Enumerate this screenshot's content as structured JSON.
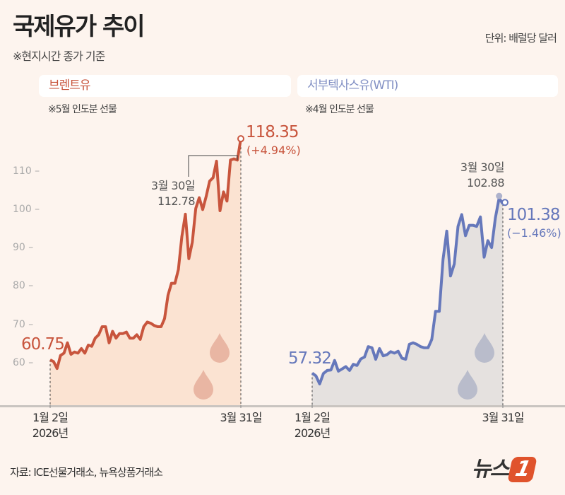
{
  "header": {
    "title": "국제유가 추이",
    "basis_note": "※현지시간 종가 기준",
    "unit": "단위: 배럴당 달러"
  },
  "source": "자료: ICE선물거래소, 뉴욕상품거래소",
  "logo_text": "뉴스1",
  "colors": {
    "background": "#fdf4ee",
    "brent": "#c8553d",
    "brent_fill": "#fbe3d2",
    "wti": "#6678bb",
    "wti_fill": "#e5e1df",
    "logo": "#e0532c"
  },
  "chart_data": [
    {
      "type": "area",
      "title": "브렌트유",
      "note": "※5월 인도분 선물",
      "yticks": [
        60,
        70,
        80,
        90,
        100,
        110
      ],
      "ylim": [
        52,
        121
      ],
      "x_start_label": "1월 2일",
      "x_start_year": "2026년",
      "x_end_label": "3월 31일",
      "values": [
        60.75,
        60.3,
        58.5,
        61.9,
        62.5,
        65.2,
        62.2,
        62.8,
        62.5,
        63.7,
        62.5,
        64.6,
        64.3,
        66.4,
        67.3,
        69.4,
        69.4,
        65.2,
        68.2,
        66.4,
        67.6,
        67.6,
        68.0,
        66.4,
        66.4,
        67.3,
        66.1,
        69.4,
        70.6,
        70.3,
        69.7,
        69.4,
        69.4,
        71.5,
        77.6,
        80.7,
        80.7,
        84.3,
        92.9,
        98.7,
        87.1,
        91.4,
        100.2,
        103.0,
        99.9,
        103.3,
        107.3,
        108.2,
        112.5,
        99.6,
        104.5,
        102.1,
        112.8,
        113.1,
        112.78,
        118.35
      ],
      "start_label": "60.75",
      "prev": {
        "date": "3월 30일",
        "value": "112.78"
      },
      "last": {
        "value": "118.35",
        "change": "(+4.94%)"
      }
    },
    {
      "type": "area",
      "title": "서부텍사스유(WTI)",
      "note": "※4월 인도분 선물",
      "ylim": [
        52,
        121
      ],
      "x_start_label": "1월 2일",
      "x_start_year": "2026년",
      "x_end_label": "3월 31일",
      "values": [
        57.32,
        56.6,
        54.5,
        57.2,
        58.0,
        58.1,
        60.6,
        57.8,
        58.4,
        59.0,
        58.0,
        59.6,
        59.3,
        61.0,
        61.5,
        64.2,
        63.9,
        60.9,
        63.7,
        61.8,
        62.1,
        62.9,
        62.5,
        63.0,
        61.2,
        60.9,
        64.8,
        65.2,
        64.8,
        64.2,
        63.9,
        63.9,
        66.1,
        73.4,
        73.4,
        86.9,
        94.3,
        82.6,
        85.7,
        95.5,
        98.6,
        93.1,
        95.8,
        95.8,
        95.5,
        98.0,
        87.5,
        91.8,
        90.0,
        97.7,
        102.88,
        101.38
      ],
      "start_label": "57.32",
      "prev": {
        "date": "3월 30일",
        "value": "102.88"
      },
      "last": {
        "value": "101.38",
        "change": "(−1.46%)"
      }
    }
  ]
}
